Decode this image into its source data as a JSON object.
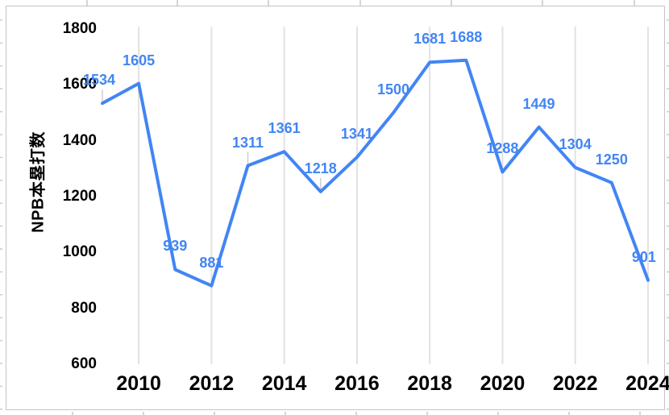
{
  "chart_data": {
    "type": "line",
    "title": "",
    "xlabel": "",
    "ylabel": "NPB本塁打数",
    "x_years": [
      2009,
      2010,
      2011,
      2012,
      2013,
      2014,
      2015,
      2016,
      2017,
      2018,
      2019,
      2020,
      2021,
      2022,
      2023,
      2024
    ],
    "values": [
      1534,
      1605,
      939,
      881,
      1311,
      1361,
      1218,
      1341,
      1500,
      1681,
      1688,
      1288,
      1449,
      1304,
      1250,
      901
    ],
    "data_labels": [
      "1534",
      "1605",
      "939",
      "881",
      "1311",
      "1361",
      "1218",
      "1341",
      "1500",
      "1681",
      "1688",
      "1288",
      "1449",
      "1304",
      "1250",
      "901"
    ],
    "ylim": [
      600,
      1800
    ],
    "y_ticks": [
      1800,
      1600,
      1400,
      1200,
      1000,
      800,
      600
    ],
    "x_tick_labels": [
      "2010",
      "2012",
      "2014",
      "2016",
      "2018",
      "2020",
      "2022",
      "2024"
    ],
    "grid": "vertical-only",
    "legend": "none",
    "colors": {
      "line": "#4285f4",
      "data_label": "#4285f4",
      "axis_text": "#000000",
      "gridline": "#e2e2e2",
      "chart_border": "#c4c4c4",
      "leader_line": "#cfcfcf",
      "edge_stub": "#c9c9c9",
      "background": "#ffffff"
    }
  }
}
